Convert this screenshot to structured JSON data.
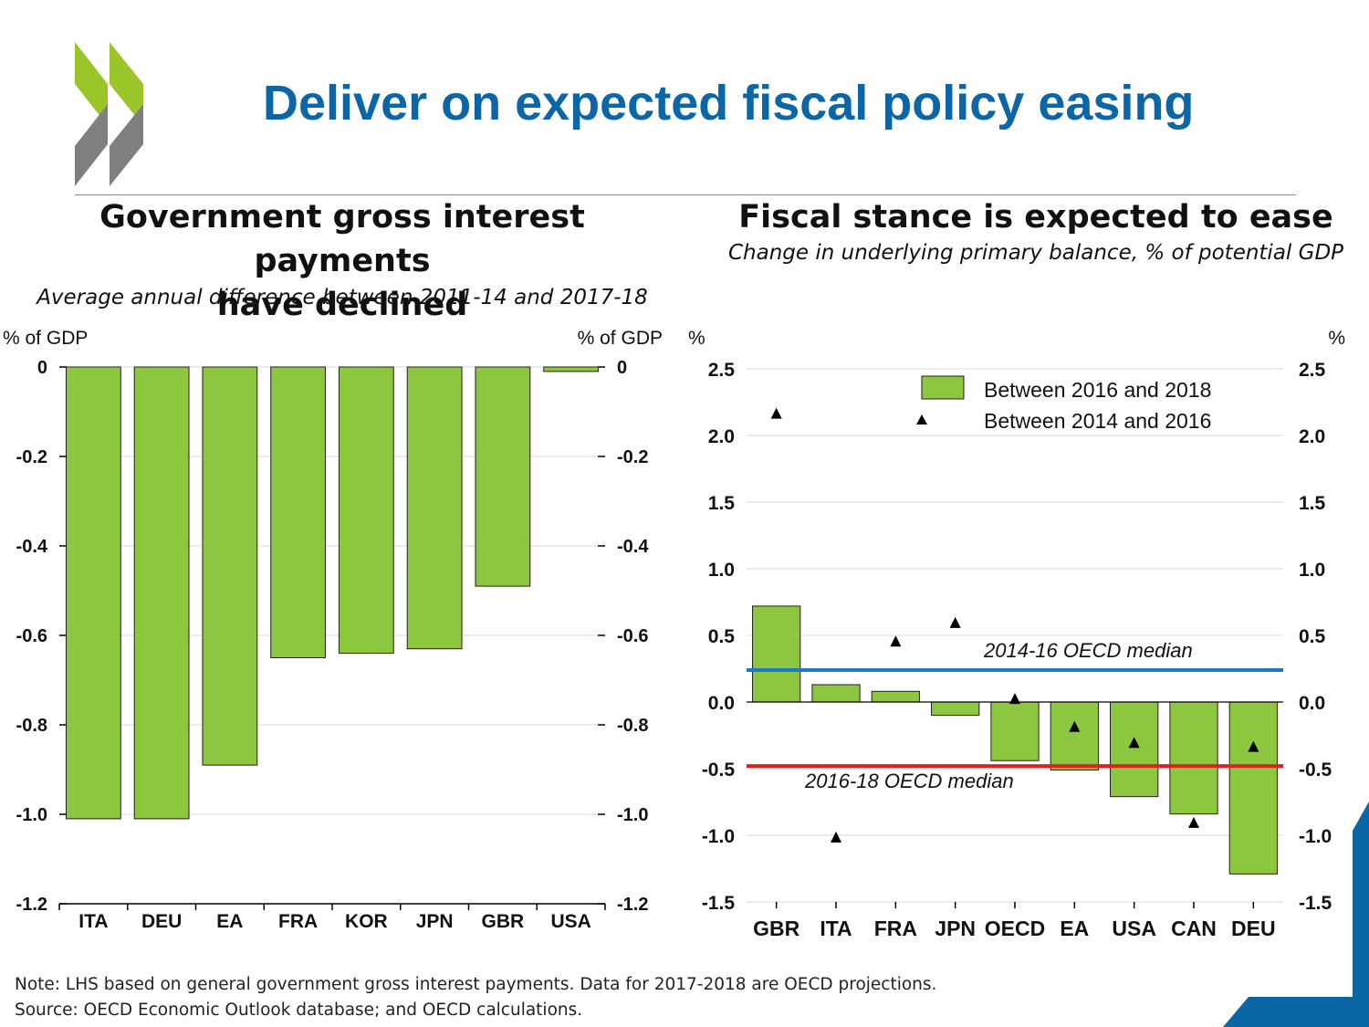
{
  "title": "Deliver on expected fiscal policy easing",
  "colors": {
    "title_blue": "#0a66a6",
    "bar_green": "#8dc63f",
    "logo_green": "#9cc52a",
    "logo_grey": "#7f7f7f",
    "median_blue": "#1f78c1",
    "median_red": "#e02020"
  },
  "left_panel": {
    "title_line1": "Government gross interest payments",
    "title_line2": "have declined",
    "subtitle": "Average annual difference between 2011-14 and 2017-18"
  },
  "right_panel": {
    "title": "Fiscal stance is expected to ease",
    "subtitle": "Change in underlying primary balance, % of potential GDP"
  },
  "notes": {
    "note": "Note: LHS based on general government gross interest payments. Data for 2017-2018 are OECD projections.",
    "source": "Source: OECD Economic Outlook database; and OECD calculations."
  },
  "chart_data": [
    {
      "type": "bar",
      "title": "Government gross interest payments have declined",
      "subtitle": "Average annual difference between 2011-14 and 2017-18",
      "ylabel_left": "% of GDP",
      "ylabel_right": "% of GDP",
      "categories": [
        "ITA",
        "DEU",
        "EA",
        "FRA",
        "KOR",
        "JPN",
        "GBR",
        "USA"
      ],
      "values": [
        -1.01,
        -1.01,
        -0.89,
        -0.65,
        -0.64,
        -0.63,
        -0.49,
        -0.01
      ],
      "ylim": [
        -1.2,
        0
      ],
      "yticks": [
        0,
        -0.2,
        -0.4,
        -0.6,
        -0.8,
        -1.0,
        -1.2
      ],
      "ytick_labels": [
        "0",
        "-0.2",
        "-0.4",
        "-0.6",
        "-0.8",
        "-1.0",
        "-1.2"
      ],
      "grid": true
    },
    {
      "type": "bar",
      "title": "Fiscal stance is expected to ease",
      "subtitle": "Change in underlying primary balance, % of potential GDP",
      "ylabel_left": "%",
      "ylabel_right": "%",
      "categories": [
        "GBR",
        "ITA",
        "FRA",
        "JPN",
        "OECD",
        "EA",
        "USA",
        "CAN",
        "DEU"
      ],
      "series": [
        {
          "name": "Between 2016 and 2018",
          "kind": "bar",
          "values": [
            0.72,
            0.13,
            0.08,
            -0.1,
            -0.44,
            -0.51,
            -0.71,
            -0.84,
            -1.29
          ]
        },
        {
          "name": "Between 2014 and 2016",
          "kind": "marker",
          "values": [
            2.16,
            -1.02,
            0.45,
            0.59,
            0.02,
            -0.19,
            -0.31,
            -0.91,
            -0.34
          ]
        }
      ],
      "reference_lines": [
        {
          "label": "2014-16 OECD median",
          "value": 0.24,
          "color": "#1f78c1"
        },
        {
          "label": "2016-18 OECD median",
          "value": -0.48,
          "color": "#e02020"
        }
      ],
      "ylim": [
        -1.5,
        2.5
      ],
      "yticks": [
        2.5,
        2.0,
        1.5,
        1.0,
        0.5,
        0.0,
        -0.5,
        -1.0,
        -1.5
      ],
      "ytick_labels": [
        "2.5",
        "2.0",
        "1.5",
        "1.0",
        "0.5",
        "0.0",
        "-0.5",
        "-1.0",
        "-1.5"
      ],
      "legend_position": "top-right",
      "grid": true
    }
  ]
}
